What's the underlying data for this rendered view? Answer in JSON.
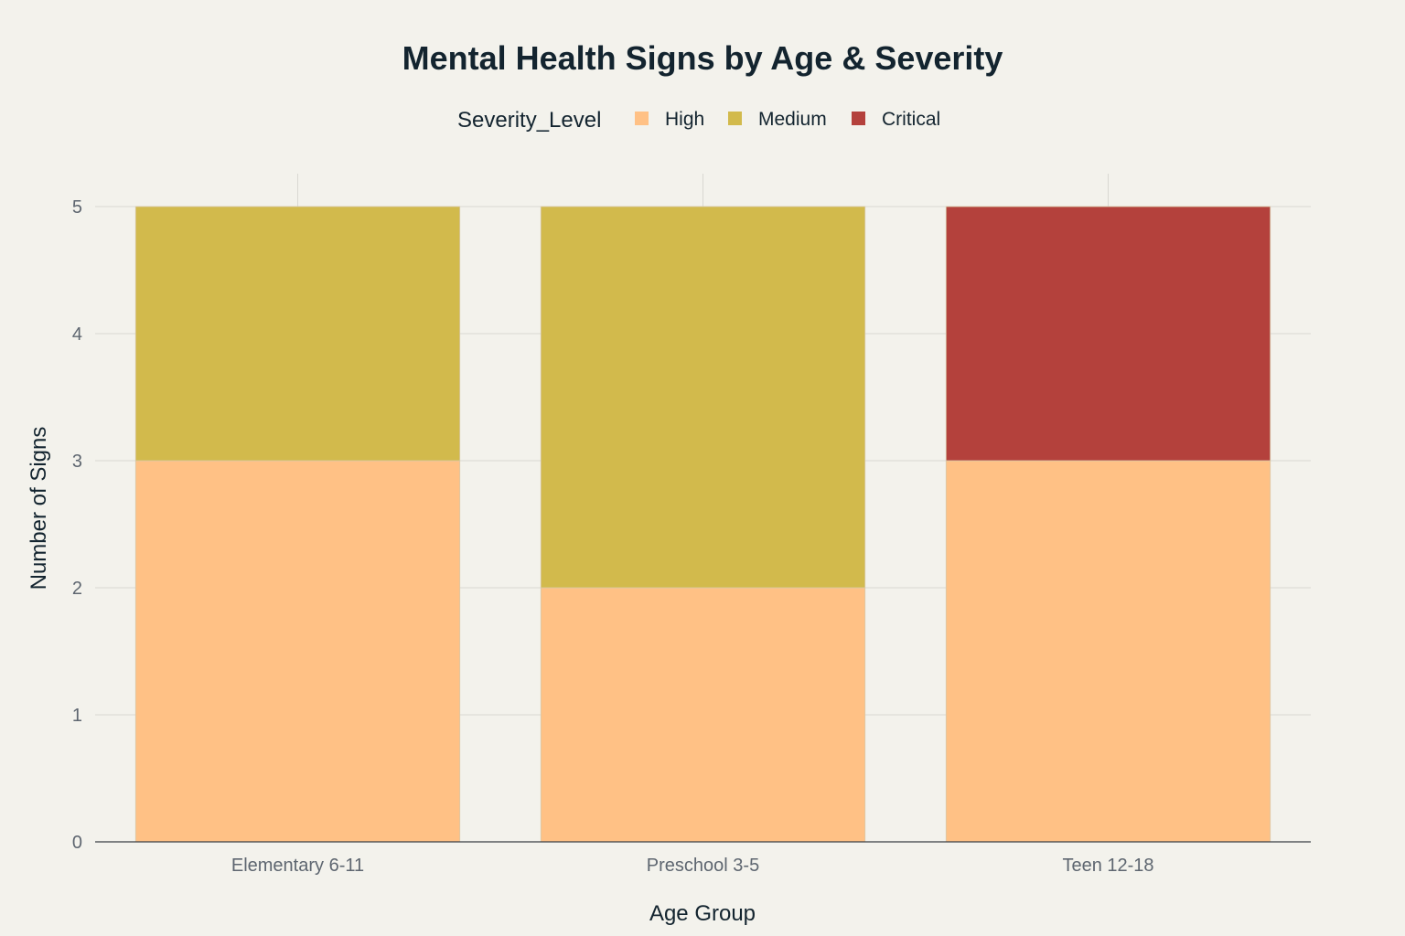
{
  "chart_data": {
    "type": "bar",
    "stacked": true,
    "title": "Mental Health Signs by Age & Severity",
    "xlabel": "Age Group",
    "ylabel": "Number of Signs",
    "categories": [
      "Elementary 6-11",
      "Preschool 3-5",
      "Teen 12-18"
    ],
    "series": [
      {
        "name": "High",
        "color": "#ffc185",
        "values": [
          3,
          2,
          3
        ]
      },
      {
        "name": "Medium",
        "color": "#d2ba4c",
        "values": [
          2,
          3,
          0
        ]
      },
      {
        "name": "Critical",
        "color": "#b4413c",
        "values": [
          0,
          0,
          2
        ]
      }
    ],
    "ylim": [
      0,
      5
    ],
    "yticks": [
      0,
      1,
      2,
      3,
      4,
      5
    ],
    "legend": {
      "title": "Severity_Level",
      "position": "top-center"
    },
    "grid": true
  }
}
